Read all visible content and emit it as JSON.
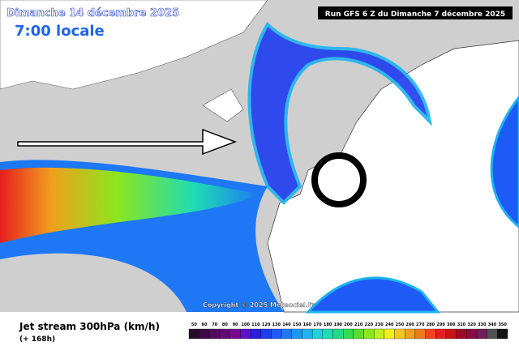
{
  "header": {
    "date": "Dimanche 14 décembre 2025",
    "time": "7:00 locale",
    "run": "Run GFS 6 Z du Dimanche 7 décembre 2025"
  },
  "copyright": "Copyright © 2025 Meteociel.fr",
  "footer": {
    "title": "Jet stream 300hPa (km/h)",
    "lead": "(+ 168h)"
  },
  "scale": [
    {
      "label": 50,
      "color": "#2a0a2a"
    },
    {
      "label": 60,
      "color": "#3c0a44"
    },
    {
      "label": 70,
      "color": "#500a5e"
    },
    {
      "label": 80,
      "color": "#640a78"
    },
    {
      "label": 90,
      "color": "#780a92"
    },
    {
      "label": 100,
      "color": "#5a14c8"
    },
    {
      "label": 110,
      "color": "#2a1ee0"
    },
    {
      "label": 120,
      "color": "#1e3cf0"
    },
    {
      "label": 130,
      "color": "#1e5af5"
    },
    {
      "label": 140,
      "color": "#1e78f5"
    },
    {
      "label": 150,
      "color": "#1e96f5"
    },
    {
      "label": 160,
      "color": "#1eb4f0"
    },
    {
      "label": 170,
      "color": "#1ed2dc"
    },
    {
      "label": 180,
      "color": "#1edcb4"
    },
    {
      "label": 190,
      "color": "#1edc8c"
    },
    {
      "label": 200,
      "color": "#32dc50"
    },
    {
      "label": 210,
      "color": "#5adc28"
    },
    {
      "label": 220,
      "color": "#8ce61e"
    },
    {
      "label": 230,
      "color": "#bef01e"
    },
    {
      "label": 240,
      "color": "#f0f01e"
    },
    {
      "label": 250,
      "color": "#f0c81e"
    },
    {
      "label": 260,
      "color": "#f0a01e"
    },
    {
      "label": 270,
      "color": "#f0781e"
    },
    {
      "label": 280,
      "color": "#f0461e"
    },
    {
      "label": 290,
      "color": "#e61e1e"
    },
    {
      "label": 300,
      "color": "#c81414"
    },
    {
      "label": 310,
      "color": "#a00a28"
    },
    {
      "label": 320,
      "color": "#8c0a46"
    },
    {
      "label": 330,
      "color": "#6e1e5a"
    },
    {
      "label": 340,
      "color": "#505050"
    },
    {
      "label": 350,
      "color": "#141414"
    }
  ]
}
